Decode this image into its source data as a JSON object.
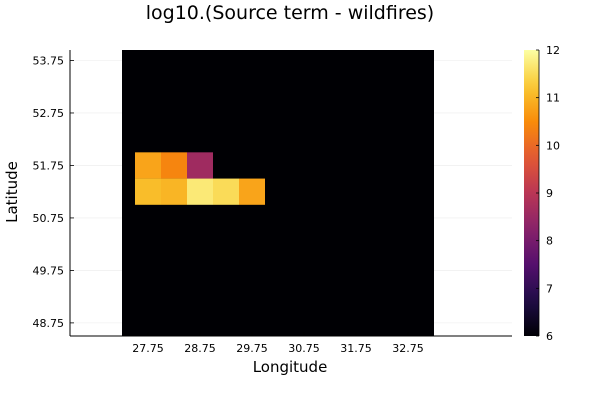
{
  "chart_data": {
    "type": "heatmap",
    "title": "log10.(Source term - wildfires)",
    "xlabel": "Longitude",
    "ylabel": "Latitude",
    "x_ticks": [
      "27.75",
      "28.75",
      "29.75",
      "30.75",
      "31.75",
      "32.75"
    ],
    "y_ticks": [
      "48.75",
      "49.75",
      "50.75",
      "51.75",
      "52.75",
      "53.75"
    ],
    "xlim": [
      26.25,
      34.75
    ],
    "ylim": [
      48.5,
      53.95
    ],
    "grid_x_range": [
      27.25,
      33.25
    ],
    "grid_y_range": [
      48.25,
      54.25
    ],
    "cell_size": 0.5,
    "background_value": 6,
    "cells": [
      {
        "lon": 27.75,
        "lat": 51.75,
        "value": 10.8
      },
      {
        "lon": 28.25,
        "lat": 51.75,
        "value": 10.4
      },
      {
        "lon": 28.75,
        "lat": 51.75,
        "value": 8.6
      },
      {
        "lon": 27.75,
        "lat": 51.25,
        "value": 11.1
      },
      {
        "lon": 28.25,
        "lat": 51.25,
        "value": 11.0
      },
      {
        "lon": 28.75,
        "lat": 51.25,
        "value": 11.7
      },
      {
        "lon": 29.25,
        "lat": 51.25,
        "value": 11.5
      },
      {
        "lon": 29.75,
        "lat": 51.25,
        "value": 10.8
      }
    ],
    "colorbar": {
      "min": 6,
      "max": 12,
      "ticks": [
        "6",
        "7",
        "8",
        "9",
        "10",
        "11",
        "12"
      ],
      "colormap": "inferno"
    },
    "grid": true
  }
}
